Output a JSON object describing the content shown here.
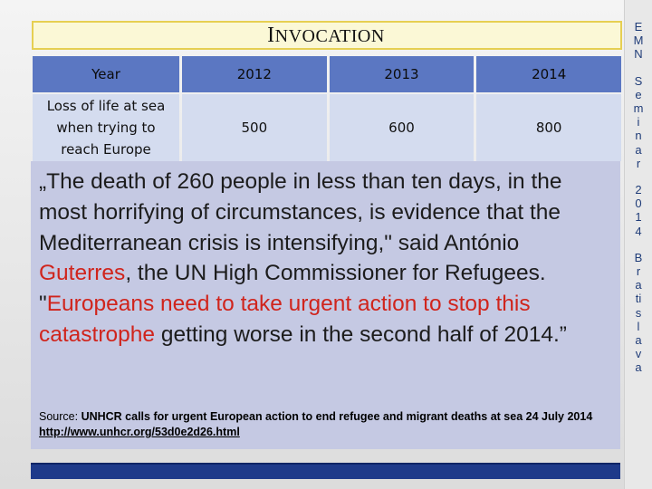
{
  "title": {
    "first_letters": [
      "I"
    ],
    "rest": "NVOCATION"
  },
  "table": {
    "header": [
      "Year",
      "2012",
      "2013",
      "2014"
    ],
    "row_label_lines": [
      "Loss of life at sea",
      "when trying to",
      "reach Europe"
    ],
    "row_values": [
      "500",
      "600",
      "800"
    ]
  },
  "quote": {
    "p1": "„The death of 260 people in less than ten days, in the most horrifying of circumstances, is evidence that the Mediterranean crisis is intensifying,\" said António ",
    "name": "Guterres",
    "p2": ", the UN High Commissioner for Refugees. \"",
    "highlight": "Europeans need to take urgent action to stop this catastrophe",
    "p3": " getting worse in the second half of 2014.”"
  },
  "source": {
    "label": "Source: ",
    "text": "UNHCR calls for urgent European action to end refugee and migrant deaths at sea 24 July 2014",
    "link": "http://www.unhcr.org/53d0e2d26.html"
  },
  "side_text": {
    "groups": [
      [
        "E",
        "M",
        "N"
      ],
      [
        "S",
        "e",
        "m",
        "i",
        "n",
        "a",
        "r"
      ],
      [
        "2",
        "0",
        "1",
        "4"
      ],
      [
        "B",
        "r",
        "a",
        "ti",
        "s",
        "l",
        "a",
        "v",
        "a"
      ]
    ]
  },
  "colors": {
    "header_cell": "#5b77c2",
    "body_cell": "#d4dcef",
    "quote_bg": "#c5c9e3",
    "accent_red": "#d0241c",
    "title_border": "#e6cf52",
    "side_text": "#1f3c78"
  }
}
